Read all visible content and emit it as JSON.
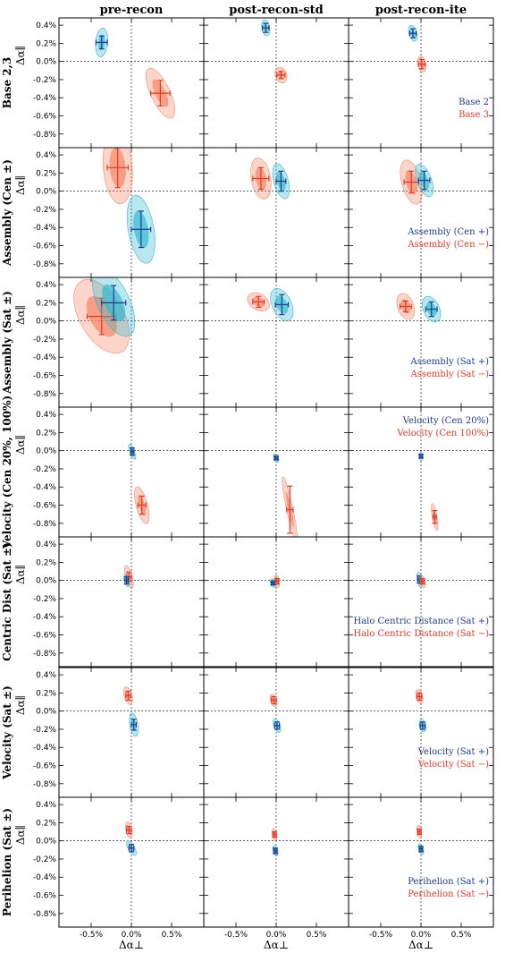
{
  "figure": {
    "col_titles": [
      "pre-recon",
      "post-recon-std",
      "post-recon-ite"
    ],
    "ylabel": "Δα∥",
    "xlabel": "Δα⊥",
    "colors": {
      "blue_line": "#1f3b8a",
      "blue_fill": "#2bb6cf",
      "red_line": "#e03a2a",
      "red_fill": "#f5815f"
    }
  },
  "chart_data": {
    "type": "scatter",
    "xlim": [
      -0.9,
      0.9
    ],
    "ylim": [
      -0.95,
      0.48
    ],
    "xticks": [
      -0.5,
      0.0,
      0.5
    ],
    "yticks": [
      0.4,
      0.2,
      0.0,
      -0.2,
      -0.4,
      -0.6,
      -0.8
    ],
    "xtick_labels": [
      "-0.5%",
      "0.0%",
      "0.5%"
    ],
    "ytick_labels": [
      "0.4%",
      "0.2%",
      "0.0%",
      "-0.2%",
      "-0.4%",
      "-0.6%",
      "-0.8%"
    ],
    "grid": false,
    "rows": [
      {
        "label": "Base 2,3",
        "legend": [
          {
            "name": "Base 2",
            "color": "blue"
          },
          {
            "name": "Base 3",
            "color": "red"
          }
        ],
        "legend_col": 2,
        "legend_pos": "lower-right",
        "panels": [
          [
            {
              "color": "blue",
              "x": -0.37,
              "y": 0.21,
              "sx": 0.07,
              "sy": 0.07,
              "a": 0.075,
              "b": 0.16,
              "angle": 5
            },
            {
              "color": "red",
              "x": 0.36,
              "y": -0.35,
              "sx": 0.12,
              "sy": 0.14,
              "a": 0.12,
              "b": 0.3,
              "angle": -25
            }
          ],
          [
            {
              "color": "blue",
              "x": -0.13,
              "y": 0.37,
              "sx": 0.04,
              "sy": 0.05,
              "a": 0.05,
              "b": 0.09,
              "angle": -10
            },
            {
              "color": "red",
              "x": 0.06,
              "y": -0.15,
              "sx": 0.05,
              "sy": 0.04,
              "a": 0.07,
              "b": 0.09,
              "angle": -20
            }
          ],
          [
            {
              "color": "blue",
              "x": -0.1,
              "y": 0.31,
              "sx": 0.04,
              "sy": 0.05,
              "a": 0.05,
              "b": 0.09,
              "angle": -15
            },
            {
              "color": "red",
              "x": 0.01,
              "y": -0.03,
              "sx": 0.04,
              "sy": 0.05,
              "a": 0.05,
              "b": 0.09,
              "angle": -10
            }
          ]
        ]
      },
      {
        "label": "Assembly (Cen ±)",
        "legend": [
          {
            "name": "Assembly (Cen +)",
            "color": "blue"
          },
          {
            "name": "Assembly (Cen −)",
            "color": "red"
          }
        ],
        "legend_col": 2,
        "legend_pos": "lower-right",
        "panels": [
          [
            {
              "color": "red",
              "x": -0.17,
              "y": 0.26,
              "sx": 0.13,
              "sy": 0.22,
              "a": 0.18,
              "b": 0.4,
              "angle": -5
            },
            {
              "color": "blue",
              "x": 0.12,
              "y": -0.42,
              "sx": 0.12,
              "sy": 0.2,
              "a": 0.16,
              "b": 0.38,
              "angle": -10
            }
          ],
          [
            {
              "color": "red",
              "x": -0.19,
              "y": 0.14,
              "sx": 0.1,
              "sy": 0.12,
              "a": 0.12,
              "b": 0.23,
              "angle": -10
            },
            {
              "color": "blue",
              "x": 0.06,
              "y": 0.11,
              "sx": 0.06,
              "sy": 0.11,
              "a": 0.09,
              "b": 0.2,
              "angle": -15
            }
          ],
          [
            {
              "color": "red",
              "x": -0.12,
              "y": 0.1,
              "sx": 0.09,
              "sy": 0.12,
              "a": 0.12,
              "b": 0.25,
              "angle": -15
            },
            {
              "color": "blue",
              "x": 0.04,
              "y": 0.12,
              "sx": 0.07,
              "sy": 0.1,
              "a": 0.09,
              "b": 0.19,
              "angle": -20
            }
          ]
        ]
      },
      {
        "label": "Assembly (Sat ±)",
        "legend": [
          {
            "name": "Assembly (Sat +)",
            "color": "blue"
          },
          {
            "name": "Assembly (Sat −)",
            "color": "red"
          }
        ],
        "legend_col": 2,
        "legend_pos": "lower-right",
        "panels": [
          [
            {
              "color": "red",
              "x": -0.37,
              "y": 0.05,
              "sx": 0.18,
              "sy": 0.2,
              "a": 0.27,
              "b": 0.45,
              "angle": -30
            },
            {
              "color": "blue",
              "x": -0.22,
              "y": 0.2,
              "sx": 0.15,
              "sy": 0.19,
              "a": 0.2,
              "b": 0.4,
              "angle": -25
            }
          ],
          [
            {
              "color": "red",
              "x": -0.22,
              "y": 0.21,
              "sx": 0.07,
              "sy": 0.06,
              "a": 0.1,
              "b": 0.13,
              "angle": -60
            },
            {
              "color": "blue",
              "x": 0.07,
              "y": 0.18,
              "sx": 0.08,
              "sy": 0.11,
              "a": 0.12,
              "b": 0.19,
              "angle": -25
            }
          ],
          [
            {
              "color": "red",
              "x": -0.19,
              "y": 0.16,
              "sx": 0.07,
              "sy": 0.06,
              "a": 0.1,
              "b": 0.15,
              "angle": -20
            },
            {
              "color": "blue",
              "x": 0.13,
              "y": 0.13,
              "sx": 0.07,
              "sy": 0.08,
              "a": 0.1,
              "b": 0.15,
              "angle": -25
            }
          ]
        ]
      },
      {
        "label": "Velocity (Cen 20%, 100%)",
        "legend": [
          {
            "name": "Velocity (Cen 20%)",
            "color": "blue"
          },
          {
            "name": "Velocity (Cen 100%)",
            "color": "red"
          }
        ],
        "legend_col": 2,
        "legend_pos": "upper-right",
        "panels": [
          [
            {
              "color": "blue",
              "x": 0.01,
              "y": -0.01,
              "sx": 0.02,
              "sy": 0.04,
              "a": 0.03,
              "b": 0.09,
              "angle": -20
            },
            {
              "color": "red",
              "x": 0.13,
              "y": -0.6,
              "sx": 0.05,
              "sy": 0.1,
              "a": 0.07,
              "b": 0.21,
              "angle": -15
            }
          ],
          [
            {
              "color": "blue",
              "x": 0.0,
              "y": -0.08,
              "sx": 0.02,
              "sy": 0.02,
              "a": 0.03,
              "b": 0.05,
              "angle": -20
            },
            {
              "color": "red",
              "x": 0.17,
              "y": -0.65,
              "sx": 0.04,
              "sy": 0.26,
              "a": 0.04,
              "b": 0.37,
              "angle": -12
            }
          ],
          [
            {
              "color": "blue",
              "x": 0.0,
              "y": -0.06,
              "sx": 0.02,
              "sy": 0.02,
              "a": 0.02,
              "b": 0.05,
              "angle": -5
            },
            {
              "color": "red",
              "x": 0.17,
              "y": -0.73,
              "sx": 0.02,
              "sy": 0.07,
              "a": 0.03,
              "b": 0.15,
              "angle": -10
            }
          ]
        ]
      },
      {
        "label": "Centric Dist (Sat ±)",
        "legend": [
          {
            "name": "Halo Centric Distance (Sat +)",
            "color": "blue"
          },
          {
            "name": "Halo Centric Distance (Sat −)",
            "color": "red"
          }
        ],
        "legend_col": 2,
        "legend_pos": "lower-right",
        "panels": [
          [
            {
              "color": "red",
              "x": -0.03,
              "y": 0.04,
              "sx": 0.03,
              "sy": 0.05,
              "a": 0.04,
              "b": 0.13,
              "angle": -15
            },
            {
              "color": "blue",
              "x": -0.06,
              "y": 0.0,
              "sx": 0.02,
              "sy": 0.04,
              "a": 0.03,
              "b": 0.07,
              "angle": -15
            }
          ],
          [
            {
              "color": "red",
              "x": 0.01,
              "y": -0.01,
              "sx": 0.02,
              "sy": 0.03,
              "a": 0.03,
              "b": 0.07,
              "angle": -10
            },
            {
              "color": "blue",
              "x": -0.04,
              "y": -0.03,
              "sx": 0.02,
              "sy": 0.02,
              "a": 0.03,
              "b": 0.05,
              "angle": -20
            }
          ],
          [
            {
              "color": "blue",
              "x": -0.02,
              "y": 0.01,
              "sx": 0.02,
              "sy": 0.04,
              "a": 0.03,
              "b": 0.08,
              "angle": -10
            },
            {
              "color": "red",
              "x": 0.02,
              "y": -0.01,
              "sx": 0.02,
              "sy": 0.03,
              "a": 0.03,
              "b": 0.07,
              "angle": -15
            }
          ]
        ]
      },
      {
        "label": "Velocity (Sat ±)",
        "legend": [
          {
            "name": "Velocity (Sat +)",
            "color": "blue"
          },
          {
            "name": "Velocity (Sat −)",
            "color": "red"
          }
        ],
        "legend_col": 2,
        "legend_pos": "lower-right",
        "panels": [
          [
            {
              "color": "red",
              "x": -0.04,
              "y": 0.17,
              "sx": 0.03,
              "sy": 0.05,
              "a": 0.05,
              "b": 0.1,
              "angle": -15
            },
            {
              "color": "blue",
              "x": 0.03,
              "y": -0.15,
              "sx": 0.03,
              "sy": 0.06,
              "a": 0.05,
              "b": 0.13,
              "angle": -10
            }
          ],
          [
            {
              "color": "red",
              "x": -0.03,
              "y": 0.12,
              "sx": 0.03,
              "sy": 0.04,
              "a": 0.04,
              "b": 0.07,
              "angle": -15
            },
            {
              "color": "blue",
              "x": 0.01,
              "y": -0.16,
              "sx": 0.03,
              "sy": 0.04,
              "a": 0.04,
              "b": 0.08,
              "angle": -20
            }
          ],
          [
            {
              "color": "red",
              "x": -0.02,
              "y": 0.16,
              "sx": 0.03,
              "sy": 0.04,
              "a": 0.04,
              "b": 0.08,
              "angle": -15
            },
            {
              "color": "blue",
              "x": 0.02,
              "y": -0.16,
              "sx": 0.03,
              "sy": 0.04,
              "a": 0.04,
              "b": 0.07,
              "angle": -10
            }
          ]
        ]
      },
      {
        "label": "Perihelion (Sat ±)",
        "legend": [
          {
            "name": "Perihelion (Sat +)",
            "color": "blue"
          },
          {
            "name": "Perihelion (Sat −)",
            "color": "red"
          }
        ],
        "legend_col": 2,
        "legend_pos": "lower-right",
        "panels": [
          [
            {
              "color": "red",
              "x": -0.03,
              "y": 0.12,
              "sx": 0.03,
              "sy": 0.04,
              "a": 0.04,
              "b": 0.09,
              "angle": -10
            },
            {
              "color": "blue",
              "x": 0.0,
              "y": -0.08,
              "sx": 0.03,
              "sy": 0.04,
              "a": 0.04,
              "b": 0.09,
              "angle": -30
            }
          ],
          [
            {
              "color": "red",
              "x": -0.02,
              "y": 0.07,
              "sx": 0.02,
              "sy": 0.03,
              "a": 0.03,
              "b": 0.07,
              "angle": -10
            },
            {
              "color": "blue",
              "x": -0.01,
              "y": -0.11,
              "sx": 0.02,
              "sy": 0.03,
              "a": 0.03,
              "b": 0.06,
              "angle": -15
            }
          ],
          [
            {
              "color": "red",
              "x": -0.02,
              "y": 0.1,
              "sx": 0.02,
              "sy": 0.03,
              "a": 0.03,
              "b": 0.07,
              "angle": -10
            },
            {
              "color": "blue",
              "x": 0.0,
              "y": -0.09,
              "sx": 0.02,
              "sy": 0.03,
              "a": 0.03,
              "b": 0.06,
              "angle": -15
            }
          ]
        ]
      }
    ]
  }
}
